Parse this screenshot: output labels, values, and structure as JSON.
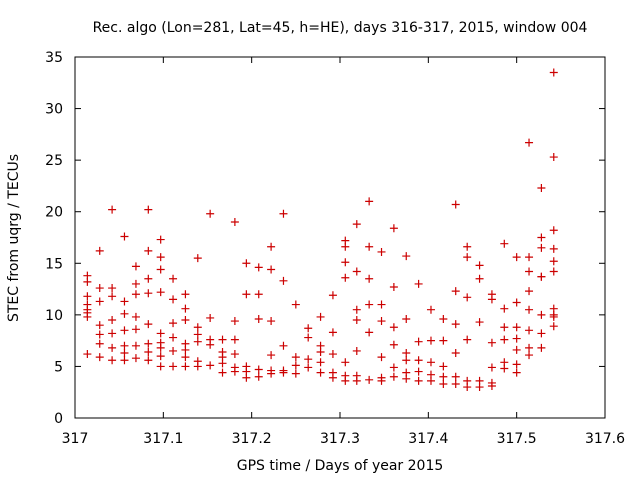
{
  "chart_data": {
    "type": "scatter",
    "title": "Rec. algo (Lon=281, Lat=45, h=HE), days 316-317, 2015, window 004",
    "xlabel": "GPS time / Days of year 2015",
    "ylabel": "STEC from uqrg / TECUs",
    "xlim": [
      317,
      317.6
    ],
    "ylim": [
      0,
      35
    ],
    "xticks": [
      317,
      317.1,
      317.2,
      317.3,
      317.4,
      317.5,
      317.6
    ],
    "xtick_labels": [
      "317",
      "317.1",
      "317.2",
      "317.3",
      "317.4",
      "317.5",
      "317.6"
    ],
    "yticks": [
      0,
      5,
      10,
      15,
      20,
      25,
      30,
      35
    ],
    "ytick_labels": [
      "0",
      "5",
      "10",
      "15",
      "20",
      "25",
      "30",
      "35"
    ],
    "marker": "plus",
    "color": "#cc0000",
    "grid": false,
    "series": [
      {
        "x": [
          317.014,
          317.014,
          317.014,
          317.014,
          317.014,
          317.014,
          317.014,
          317.014,
          317.028,
          317.028,
          317.028,
          317.028,
          317.028,
          317.028,
          317.028,
          317.042,
          317.042,
          317.042,
          317.042,
          317.042,
          317.042,
          317.042,
          317.056,
          317.056,
          317.056,
          317.056,
          317.056,
          317.056,
          317.056,
          317.069,
          317.069,
          317.069,
          317.069,
          317.069,
          317.069,
          317.069,
          317.083,
          317.083,
          317.083,
          317.083,
          317.083,
          317.083,
          317.083,
          317.083,
          317.097,
          317.097,
          317.097,
          317.097,
          317.097,
          317.097,
          317.097,
          317.097,
          317.097,
          317.111,
          317.111,
          317.111,
          317.111,
          317.111,
          317.111,
          317.125,
          317.125,
          317.125,
          317.125,
          317.125,
          317.125,
          317.125,
          317.139,
          317.139,
          317.139,
          317.139,
          317.139,
          317.139,
          317.153,
          317.153,
          317.153,
          317.153,
          317.153,
          317.167,
          317.167,
          317.167,
          317.167,
          317.167,
          317.181,
          317.181,
          317.181,
          317.181,
          317.181,
          317.181,
          317.194,
          317.194,
          317.194,
          317.194,
          317.194,
          317.208,
          317.208,
          317.208,
          317.208,
          317.208,
          317.222,
          317.222,
          317.222,
          317.222,
          317.222,
          317.222,
          317.236,
          317.236,
          317.236,
          317.236,
          317.236,
          317.25,
          317.25,
          317.25,
          317.25,
          317.264,
          317.264,
          317.264,
          317.264,
          317.278,
          317.278,
          317.278,
          317.278,
          317.278,
          317.292,
          317.292,
          317.292,
          317.292,
          317.292,
          317.306,
          317.306,
          317.306,
          317.306,
          317.306,
          317.306,
          317.306,
          317.319,
          317.319,
          317.319,
          317.319,
          317.319,
          317.319,
          317.319,
          317.333,
          317.333,
          317.333,
          317.333,
          317.333,
          317.333,
          317.347,
          317.347,
          317.347,
          317.347,
          317.347,
          317.347,
          317.361,
          317.361,
          317.361,
          317.361,
          317.361,
          317.361,
          317.375,
          317.375,
          317.375,
          317.375,
          317.375,
          317.375,
          317.389,
          317.389,
          317.389,
          317.389,
          317.389,
          317.403,
          317.403,
          317.403,
          317.403,
          317.403,
          317.417,
          317.417,
          317.417,
          317.417,
          317.417,
          317.431,
          317.431,
          317.431,
          317.431,
          317.431,
          317.431,
          317.444,
          317.444,
          317.444,
          317.444,
          317.444,
          317.444,
          317.458,
          317.458,
          317.458,
          317.458,
          317.458,
          317.472,
          317.472,
          317.472,
          317.472,
          317.472,
          317.472,
          317.486,
          317.486,
          317.486,
          317.486,
          317.486,
          317.486,
          317.5,
          317.5,
          317.5,
          317.5,
          317.5,
          317.5,
          317.5,
          317.514,
          317.514,
          317.514,
          317.514,
          317.514,
          317.514,
          317.514,
          317.514,
          317.528,
          317.528,
          317.528,
          317.528,
          317.528,
          317.528,
          317.528,
          317.528,
          317.542,
          317.542,
          317.542,
          317.542,
          317.542,
          317.542,
          317.542,
          317.542,
          317.542,
          317.542
        ],
        "y": [
          13.8,
          13.2,
          11.8,
          11.0,
          10.2,
          9.8,
          6.2,
          10.5,
          16.2,
          12.6,
          11.3,
          9.0,
          8.1,
          7.2,
          5.9,
          20.2,
          12.6,
          11.8,
          9.5,
          8.2,
          6.8,
          5.6,
          17.6,
          11.3,
          10.1,
          8.5,
          7.0,
          6.3,
          5.6,
          14.7,
          13.0,
          12.0,
          9.8,
          8.6,
          7.0,
          5.8,
          20.2,
          16.2,
          13.5,
          12.1,
          9.1,
          7.2,
          6.4,
          5.6,
          17.3,
          15.6,
          14.4,
          12.2,
          8.2,
          7.3,
          6.8,
          6.0,
          5.0,
          13.5,
          11.5,
          9.2,
          7.8,
          6.5,
          5.0,
          12.0,
          10.6,
          9.5,
          7.2,
          6.6,
          5.9,
          5.0,
          15.5,
          8.8,
          8.1,
          7.4,
          5.5,
          5.0,
          19.8,
          9.7,
          7.6,
          7.1,
          5.1,
          7.6,
          6.4,
          5.9,
          5.3,
          4.4,
          19.0,
          9.4,
          7.6,
          6.2,
          4.9,
          4.5,
          15.0,
          12.0,
          5.0,
          4.5,
          3.9,
          14.6,
          12.0,
          9.6,
          4.7,
          4.0,
          16.6,
          14.4,
          9.4,
          6.1,
          4.6,
          4.3,
          19.8,
          13.3,
          7.0,
          4.6,
          4.4,
          11.0,
          5.9,
          5.1,
          4.3,
          8.7,
          7.8,
          5.7,
          4.9,
          9.8,
          7.0,
          6.4,
          5.4,
          4.4,
          11.9,
          8.3,
          6.2,
          4.4,
          3.9,
          17.2,
          16.6,
          15.1,
          13.6,
          5.4,
          4.1,
          3.6,
          18.8,
          14.2,
          10.5,
          9.5,
          6.5,
          4.1,
          3.6,
          21.0,
          16.6,
          13.5,
          11.0,
          8.3,
          3.7,
          16.1,
          11.0,
          9.4,
          5.9,
          3.9,
          3.6,
          18.4,
          12.7,
          8.8,
          7.1,
          4.9,
          4.0,
          15.7,
          9.6,
          6.3,
          5.6,
          4.4,
          3.8,
          13.0,
          7.4,
          5.6,
          4.5,
          3.6,
          10.5,
          7.5,
          5.4,
          4.2,
          3.6,
          9.6,
          7.5,
          5.0,
          4.0,
          3.3,
          20.7,
          12.3,
          9.1,
          6.3,
          4.0,
          3.3,
          16.6,
          15.6,
          11.7,
          7.6,
          3.6,
          3.0,
          14.8,
          13.5,
          9.3,
          3.6,
          3.0,
          12.0,
          11.5,
          7.3,
          4.9,
          3.4,
          3.1,
          16.9,
          10.6,
          8.8,
          7.6,
          5.4,
          4.8,
          15.6,
          11.2,
          8.8,
          7.7,
          6.6,
          4.4,
          5.2,
          26.7,
          15.6,
          14.2,
          12.3,
          10.5,
          8.5,
          6.8,
          6.1,
          22.3,
          17.5,
          16.5,
          13.7,
          13.7,
          10.0,
          8.2,
          6.8,
          33.5,
          25.3,
          18.2,
          16.4,
          15.2,
          14.2,
          10.6,
          9.8,
          8.9,
          10.0
        ]
      }
    ]
  }
}
